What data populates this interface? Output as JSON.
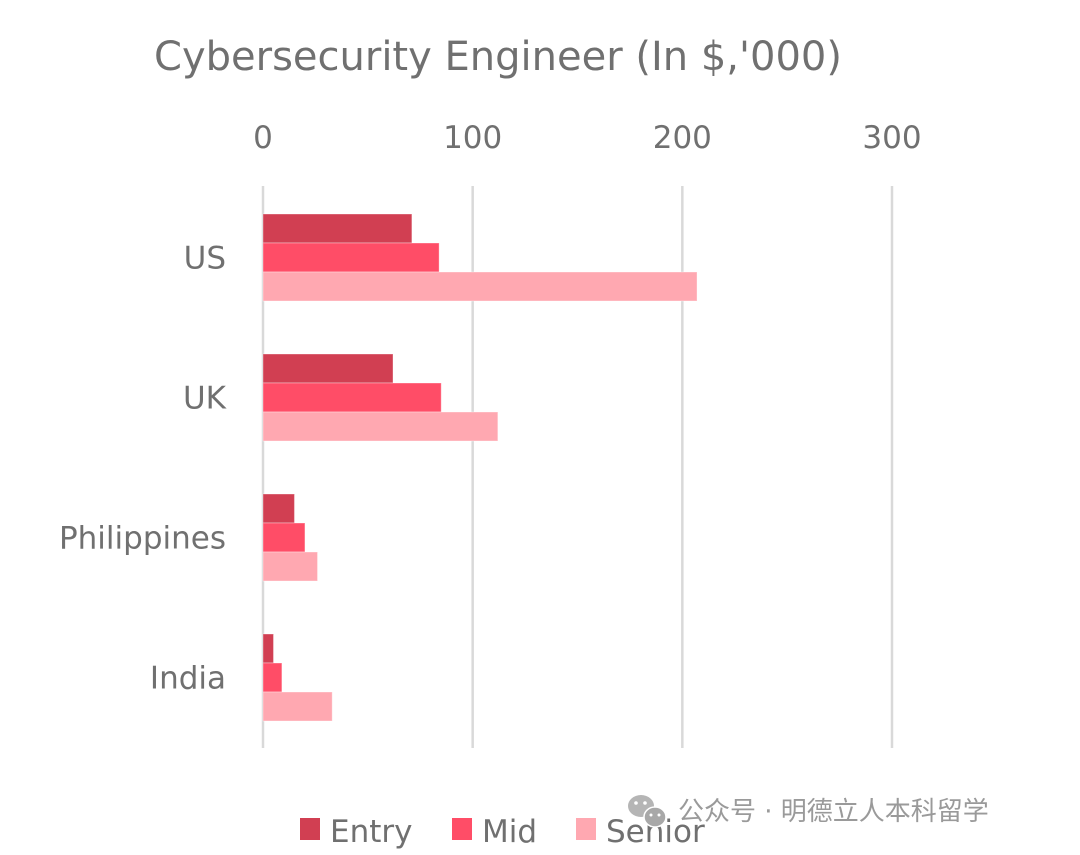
{
  "chart_data": {
    "type": "bar",
    "orientation": "horizontal",
    "title": "Cybersecurity Engineer (In $,'000)",
    "xlabel": "",
    "ylabel": "",
    "xlim": [
      0,
      300
    ],
    "x_ticks": [
      "0",
      "100",
      "200",
      "300"
    ],
    "x_tick_values": [
      0,
      100,
      200,
      300
    ],
    "x_axis_position": "top",
    "grid": true,
    "categories": [
      "US",
      "UK",
      "Philippines",
      "India"
    ],
    "series": [
      {
        "name": "Entry",
        "color": "#d13f52",
        "values": [
          71,
          62,
          15,
          5
        ]
      },
      {
        "name": "Mid",
        "color": "#ff4d67",
        "values": [
          84,
          85,
          20,
          9
        ]
      },
      {
        "name": "Senior",
        "color": "#ffa8b1",
        "values": [
          207,
          112,
          26,
          33
        ]
      }
    ],
    "legend": {
      "position": "bottom",
      "entries": [
        "Entry",
        "Mid",
        "Senior"
      ]
    }
  },
  "watermark": {
    "icon": "wechat-icon",
    "text": "公众号 · 明德立人本科留学"
  }
}
